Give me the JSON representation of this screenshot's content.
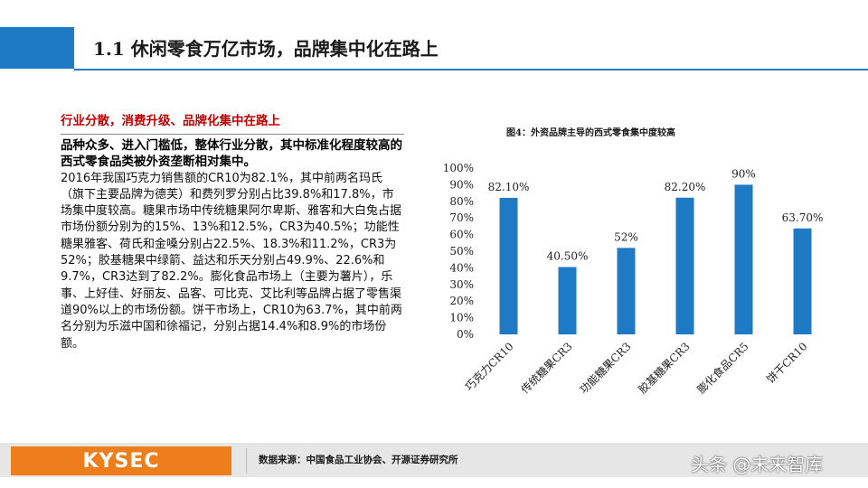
{
  "header": {
    "title": "1.1 休闲零食万亿市场，品牌集中化在路上"
  },
  "left": {
    "subhead": "行业分散，消费升级、品牌化集中在路上",
    "bold_para": "品种众多、进入门槛低，整体行业分散，其中标准化程度较高的西式零食品类被外资垄断相对集中。",
    "body_para": "2016年我国巧克力销售额的CR10为82.1%，其中前两名玛氏（旗下主要品牌为德芙）和费列罗分别占比39.8%和17.8%，市场集中度较高。糖果市场中传统糖果阿尔卑斯、雅客和大白兔占据市场份额分别为的15%、13%和12.5%，CR3为40.5%；功能性糖果雅客、荷氏和金嗓分别占22.5%、18.3%和11.2%，CR3为52%；胶基糖果中绿箭、益达和乐天分别占49.9%、22.6%和9.7%，CR3达到了82.2%。膨化食品市场上（主要为薯片），乐事、上好佳、好丽友、品客、可比克、艾比利等品牌占据了零售渠道90%以上的市场份额。饼干市场上，CR10为63.7%，其中前两名分别为乐滋中国和徐福记，分别占据14.4%和8.9%的市场份额。"
  },
  "chart_data": {
    "type": "bar",
    "title": "图4：外资品牌主导的西式零食集中度较高",
    "categories": [
      "巧克力CR10",
      "传统糖果CR3",
      "功能糖果CR3",
      "胶基糖果CR3",
      "膨化食品CR5",
      "饼干CR10"
    ],
    "values": [
      82.1,
      40.5,
      52,
      82.2,
      90,
      63.7
    ],
    "data_labels": [
      "82.10%",
      "40.50%",
      "52%",
      "82.20%",
      "90%",
      "63.70%"
    ],
    "y_ticks": [
      "0%",
      "10%",
      "20%",
      "30%",
      "40%",
      "50%",
      "60%",
      "70%",
      "80%",
      "90%",
      "100%"
    ],
    "ylim": [
      0,
      100
    ],
    "bar_color": "#1f7ac5",
    "grid": false,
    "legend": "none"
  },
  "footer": {
    "logo": "KYSEC",
    "source": "数据来源：中国食品工业协会、开源证券研究所",
    "watermark": "头条 @未来智库"
  },
  "colors": {
    "accent": "#1f7ac5",
    "subhead": "#c00000",
    "logo_bg": "#ee7d1c"
  }
}
